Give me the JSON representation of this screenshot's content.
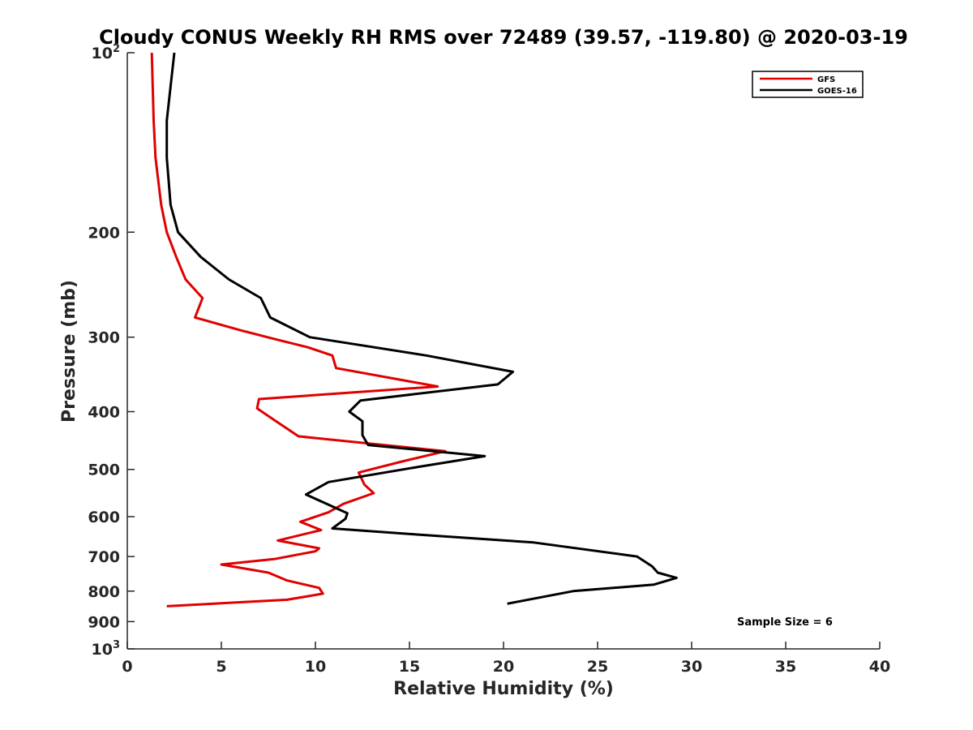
{
  "chart_data": {
    "type": "line",
    "title": "Cloudy CONUS Weekly RH RMS over 72489 (39.57, -119.80) @ 2020-03-19",
    "xlabel": "Relative Humidity (%)",
    "ylabel": "Pressure (mb)",
    "xlim": [
      0,
      40
    ],
    "ylim": [
      100,
      1000
    ],
    "yscale": "log",
    "y_reversed": true,
    "x_ticks": [
      "0",
      "5",
      "10",
      "15",
      "20",
      "25",
      "30",
      "35",
      "40"
    ],
    "y_ticks": [
      {
        "value": 100,
        "base": "10",
        "exp": "2"
      },
      {
        "value": 200,
        "label": "200"
      },
      {
        "value": 300,
        "label": "300"
      },
      {
        "value": 400,
        "label": "400"
      },
      {
        "value": 500,
        "label": "500"
      },
      {
        "value": 600,
        "label": "600"
      },
      {
        "value": 700,
        "label": "700"
      },
      {
        "value": 800,
        "label": "800"
      },
      {
        "value": 900,
        "label": "900"
      },
      {
        "value": 1000,
        "base": "10",
        "exp": "3"
      }
    ],
    "grid": false,
    "legend_position": "top-right",
    "series": [
      {
        "name": "GFS",
        "color": "#e00000",
        "points": [
          [
            1.3,
            100
          ],
          [
            1.4,
            130
          ],
          [
            1.5,
            150
          ],
          [
            1.8,
            180
          ],
          [
            2.1,
            200
          ],
          [
            2.6,
            220
          ],
          [
            3.1,
            240
          ],
          [
            4.0,
            258
          ],
          [
            3.6,
            278
          ],
          [
            6.0,
            292
          ],
          [
            7.8,
            302
          ],
          [
            9.6,
            312
          ],
          [
            10.9,
            322
          ],
          [
            11.1,
            338
          ],
          [
            16.5,
            363
          ],
          [
            7.0,
            381
          ],
          [
            6.9,
            395
          ],
          [
            7.9,
            415
          ],
          [
            9.1,
            440
          ],
          [
            16.9,
            466
          ],
          [
            14.6,
            485
          ],
          [
            12.3,
            506
          ],
          [
            12.6,
            530
          ],
          [
            13.1,
            548
          ],
          [
            11.5,
            571
          ],
          [
            10.7,
            590
          ],
          [
            9.2,
            612
          ],
          [
            10.3,
            632
          ],
          [
            8.0,
            658
          ],
          [
            10.2,
            678
          ],
          [
            10.0,
            686
          ],
          [
            7.8,
            707
          ],
          [
            5.0,
            722
          ],
          [
            7.5,
            745
          ],
          [
            8.5,
            768
          ],
          [
            10.2,
            790
          ],
          [
            10.4,
            808
          ],
          [
            8.5,
            827
          ],
          [
            2.1,
            848
          ]
        ]
      },
      {
        "name": "GOES-16",
        "color": "#000000",
        "points": [
          [
            2.5,
            100
          ],
          [
            2.1,
            130
          ],
          [
            2.1,
            150
          ],
          [
            2.3,
            180
          ],
          [
            2.7,
            200
          ],
          [
            3.9,
            220
          ],
          [
            5.4,
            240
          ],
          [
            7.1,
            258
          ],
          [
            7.6,
            278
          ],
          [
            9.7,
            300
          ],
          [
            15.9,
            322
          ],
          [
            20.5,
            343
          ],
          [
            19.7,
            360
          ],
          [
            12.4,
            383
          ],
          [
            11.8,
            400
          ],
          [
            12.5,
            415
          ],
          [
            12.5,
            438
          ],
          [
            12.8,
            455
          ],
          [
            19.0,
            475
          ],
          [
            15.5,
            495
          ],
          [
            10.7,
            525
          ],
          [
            9.5,
            551
          ],
          [
            11.7,
            592
          ],
          [
            11.6,
            605
          ],
          [
            10.9,
            628
          ],
          [
            15.4,
            643
          ],
          [
            21.6,
            663
          ],
          [
            27.1,
            700
          ],
          [
            27.9,
            727
          ],
          [
            28.2,
            745
          ],
          [
            29.2,
            760
          ],
          [
            28.0,
            780
          ],
          [
            23.7,
            800
          ],
          [
            20.2,
            840
          ]
        ]
      }
    ],
    "annotations": [
      "Sample Size = 6"
    ]
  }
}
